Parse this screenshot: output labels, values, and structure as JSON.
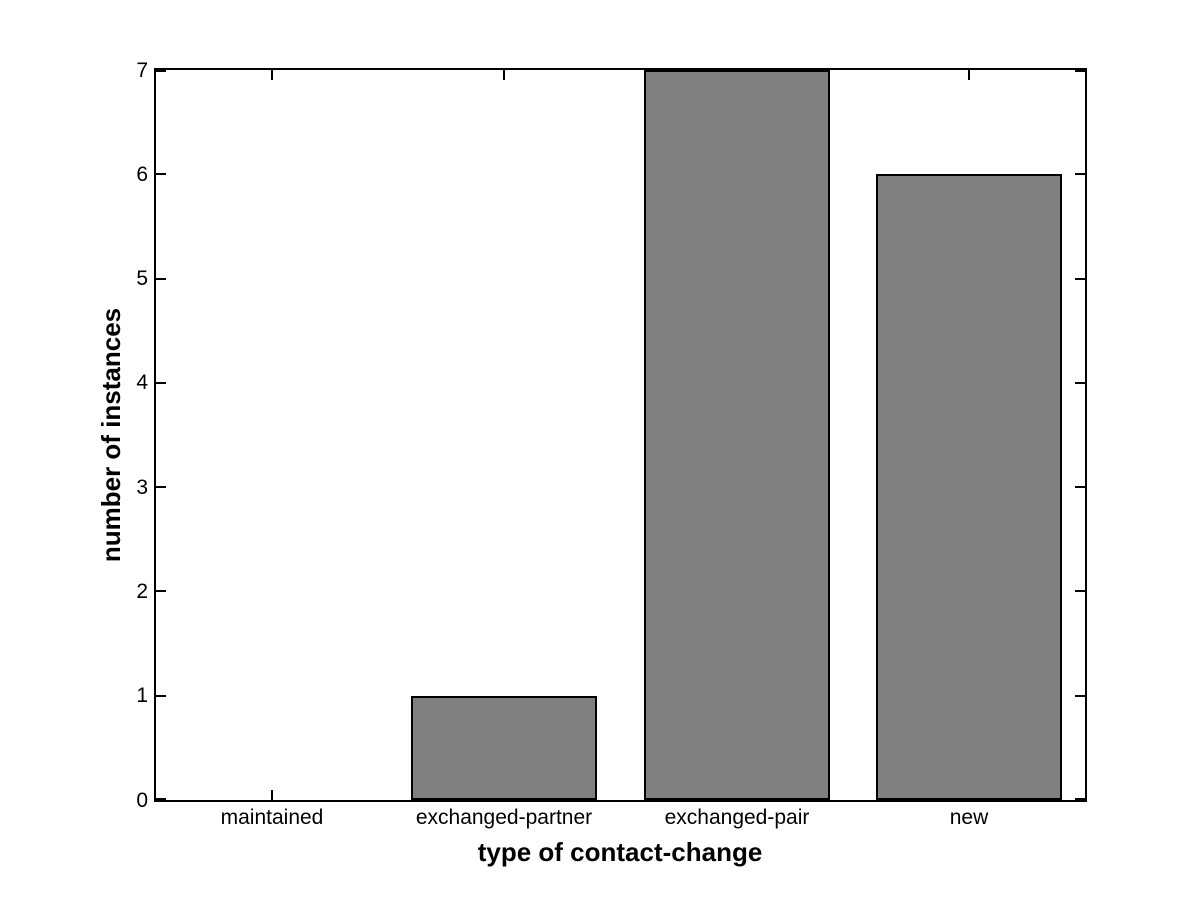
{
  "chart_data": {
    "type": "bar",
    "categories": [
      "maintained",
      "exchanged-partner",
      "exchanged-pair",
      "new"
    ],
    "values": [
      0,
      1,
      7,
      6
    ],
    "title": "",
    "xlabel": "type of contact-change",
    "ylabel": "number of instances",
    "ylim": [
      0,
      7
    ],
    "yticks": [
      0,
      1,
      2,
      3,
      4,
      5,
      6,
      7
    ],
    "bar_width_fraction": 0.8,
    "grid": false,
    "legend": null,
    "colors": {
      "bar_fill": "#808080",
      "bar_edge": "#000000",
      "axis": "#000000",
      "background": "#ffffff",
      "text": "#000000"
    }
  }
}
